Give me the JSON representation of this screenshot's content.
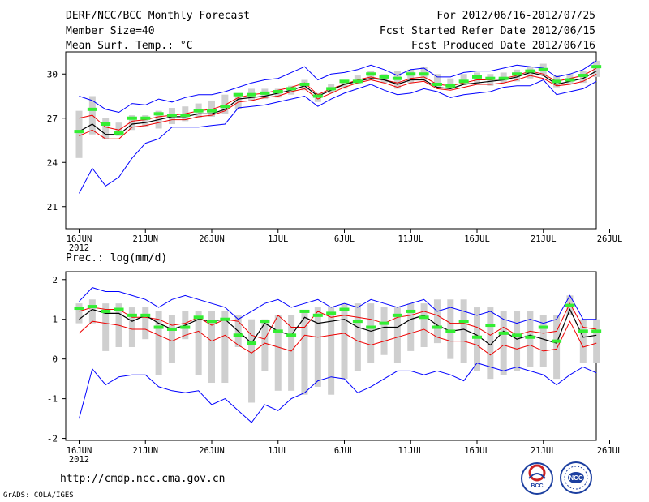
{
  "header": {
    "title": "DERF/NCC/BCC Monthly Forecast",
    "member_size": "Member Size=40",
    "variable": "Mean Surf. Temp.: °C",
    "period": "For 2012/06/16-2012/07/25",
    "start_date": "Fcst Started Refer Date 2012/06/15",
    "produced_date": "Fcst Produced Date 2012/06/16"
  },
  "footer": {
    "url": "http://cmdp.ncc.cma.gov.cn",
    "grads": "GrADS: COLA/IGES",
    "logo_bcc": "BCC",
    "logo_ncc": "NCC"
  },
  "colors": {
    "green": "#33ee33",
    "gray": "#cfcfcf",
    "blue": "#0000ff",
    "red": "#ee0000",
    "black": "#000000"
  },
  "chart_data": [
    {
      "type": "line",
      "title": "Mean Surf. Temp.: °C",
      "x_ticks": [
        "16JUN",
        "21JUN",
        "26JUN",
        "1JUL",
        "6JUL",
        "11JUL",
        "16JUL",
        "21JUL",
        "26JUL"
      ],
      "x_tick_year": "2012",
      "ylim": [
        19.5,
        31.5
      ],
      "y_ticks": [
        21,
        24,
        27,
        30
      ],
      "x": [
        0,
        1,
        2,
        3,
        4,
        5,
        6,
        7,
        8,
        9,
        10,
        11,
        12,
        13,
        14,
        15,
        16,
        17,
        18,
        19,
        20,
        21,
        22,
        23,
        24,
        25,
        26,
        27,
        28,
        29,
        30,
        31,
        32,
        33,
        34,
        35,
        36,
        37,
        38,
        39
      ],
      "series": [
        {
          "name": "box_low",
          "values": [
            24.3,
            25.9,
            25.6,
            25.8,
            26.2,
            26.4,
            26.3,
            26.6,
            26.8,
            27.0,
            27.1,
            27.3,
            27.6,
            28.2,
            28.3,
            28.4,
            28.6,
            28.9,
            28.1,
            28.7,
            29.0,
            29.3,
            29.6,
            29.4,
            29.0,
            29.4,
            29.6,
            29.1,
            29.0,
            29.3,
            29.3,
            29.2,
            29.4,
            29.5,
            29.7,
            29.9,
            29.1,
            29.3,
            29.4,
            29.8
          ]
        },
        {
          "name": "box_high",
          "values": [
            27.5,
            28.5,
            27.0,
            26.7,
            27.2,
            27.2,
            27.5,
            27.7,
            27.8,
            28.0,
            28.2,
            28.6,
            28.7,
            29.0,
            29.0,
            29.0,
            29.2,
            29.6,
            28.7,
            29.3,
            29.6,
            29.9,
            30.2,
            30.0,
            30.2,
            30.3,
            30.5,
            30.0,
            29.7,
            30.0,
            30.1,
            30.0,
            30.1,
            30.3,
            30.5,
            30.7,
            29.9,
            30.0,
            30.2,
            30.9
          ]
        },
        {
          "name": "max",
          "values": [
            28.5,
            28.2,
            27.6,
            27.4,
            28.0,
            27.9,
            28.3,
            28.1,
            28.4,
            28.6,
            28.6,
            28.8,
            29.1,
            29.4,
            29.6,
            29.7,
            30.1,
            30.5,
            29.6,
            30.0,
            30.1,
            30.3,
            30.6,
            30.3,
            29.9,
            30.3,
            30.4,
            29.8,
            29.8,
            30.1,
            30.2,
            30.2,
            30.4,
            30.6,
            30.5,
            30.4,
            29.8,
            30.0,
            30.3,
            30.9
          ]
        },
        {
          "name": "min",
          "values": [
            21.9,
            23.6,
            22.4,
            23.0,
            24.3,
            25.3,
            25.6,
            26.4,
            26.4,
            26.4,
            26.5,
            26.6,
            27.7,
            27.8,
            27.9,
            28.1,
            28.3,
            28.5,
            27.8,
            28.3,
            28.7,
            29.0,
            29.3,
            28.9,
            28.6,
            28.7,
            29.0,
            28.8,
            28.4,
            28.6,
            28.7,
            28.8,
            29.1,
            29.2,
            29.2,
            29.6,
            28.6,
            28.8,
            29.0,
            29.5
          ]
        },
        {
          "name": "upper_red",
          "values": [
            27.0,
            27.2,
            26.4,
            26.2,
            26.8,
            26.9,
            27.1,
            27.2,
            27.3,
            27.5,
            27.6,
            27.9,
            28.4,
            28.6,
            28.7,
            28.9,
            29.1,
            29.4,
            28.6,
            29.0,
            29.3,
            29.6,
            29.8,
            29.6,
            29.4,
            29.7,
            29.8,
            29.3,
            29.2,
            29.4,
            29.6,
            29.6,
            29.7,
            29.9,
            30.2,
            30.0,
            29.5,
            29.7,
            29.9,
            30.4
          ]
        },
        {
          "name": "mean",
          "values": [
            26.1,
            26.6,
            25.9,
            25.9,
            26.6,
            26.7,
            26.9,
            27.1,
            27.1,
            27.3,
            27.3,
            27.6,
            28.3,
            28.4,
            28.5,
            28.7,
            28.9,
            29.2,
            28.5,
            28.9,
            29.3,
            29.5,
            29.7,
            29.6,
            29.3,
            29.6,
            29.6,
            29.1,
            29.0,
            29.3,
            29.4,
            29.5,
            29.6,
            29.8,
            30.1,
            29.9,
            29.3,
            29.5,
            29.7,
            30.2
          ]
        },
        {
          "name": "lower_red",
          "values": [
            25.8,
            26.2,
            25.6,
            25.6,
            26.4,
            26.5,
            26.7,
            26.9,
            26.9,
            27.1,
            27.2,
            27.5,
            28.1,
            28.2,
            28.4,
            28.5,
            28.8,
            29.0,
            28.3,
            28.7,
            29.1,
            29.4,
            29.6,
            29.4,
            29.1,
            29.4,
            29.5,
            29.0,
            28.9,
            29.1,
            29.3,
            29.3,
            29.4,
            29.6,
            29.9,
            29.7,
            29.2,
            29.3,
            29.5,
            30.0
          ]
        },
        {
          "name": "obs_green",
          "values": [
            26.1,
            27.6,
            26.6,
            26.0,
            27.0,
            27.0,
            27.3,
            27.2,
            27.2,
            27.5,
            27.5,
            27.8,
            28.6,
            28.6,
            28.7,
            28.8,
            29.0,
            29.3,
            28.5,
            29.0,
            29.5,
            29.5,
            30.0,
            29.8,
            29.7,
            30.0,
            30.0,
            29.3,
            29.2,
            29.5,
            29.8,
            29.7,
            29.7,
            30.0,
            30.2,
            30.3,
            29.5,
            29.6,
            29.9,
            30.5
          ]
        }
      ]
    },
    {
      "type": "line",
      "title": "Prec.: log(mm/d)",
      "x_ticks": [
        "16JUN",
        "21JUN",
        "26JUN",
        "1JUL",
        "6JUL",
        "11JUL",
        "16JUL",
        "21JUL",
        "26JUL"
      ],
      "x_tick_year": "2012",
      "ylim": [
        -2.05,
        2.2
      ],
      "y_ticks": [
        -2,
        -1,
        0,
        1,
        2
      ],
      "x": [
        0,
        1,
        2,
        3,
        4,
        5,
        6,
        7,
        8,
        9,
        10,
        11,
        12,
        13,
        14,
        15,
        16,
        17,
        18,
        19,
        20,
        21,
        22,
        23,
        24,
        25,
        26,
        27,
        28,
        29,
        30,
        31,
        32,
        33,
        34,
        35,
        36,
        37,
        38,
        39
      ],
      "series": [
        {
          "name": "box_low",
          "values": [
            0.9,
            0.9,
            0.2,
            0.3,
            0.3,
            0.5,
            -0.4,
            -0.1,
            0.5,
            -0.4,
            -0.6,
            -0.6,
            0.3,
            -1.1,
            -0.3,
            -0.8,
            -0.8,
            -0.9,
            -0.7,
            -0.9,
            -0.5,
            -0.3,
            -0.1,
            0.1,
            -0.1,
            0.2,
            0.3,
            0.4,
            0.0,
            -0.1,
            -0.3,
            -0.5,
            -0.4,
            -0.3,
            -0.2,
            -0.2,
            -0.5,
            1.1,
            -0.1,
            -0.1
          ]
        },
        {
          "name": "box_high",
          "values": [
            1.4,
            1.5,
            1.4,
            1.4,
            1.3,
            1.3,
            1.2,
            1.1,
            1.2,
            1.2,
            1.2,
            1.2,
            1.1,
            1.0,
            1.0,
            1.1,
            1.1,
            1.2,
            1.3,
            1.3,
            1.4,
            1.4,
            1.4,
            1.3,
            1.3,
            1.4,
            1.4,
            1.5,
            1.5,
            1.5,
            1.3,
            1.3,
            1.2,
            1.2,
            1.2,
            1.1,
            1.1,
            1.6,
            1.0,
            1.0
          ]
        },
        {
          "name": "max",
          "values": [
            1.45,
            1.8,
            1.7,
            1.7,
            1.6,
            1.5,
            1.3,
            1.5,
            1.6,
            1.5,
            1.4,
            1.3,
            1.0,
            1.2,
            1.4,
            1.5,
            1.3,
            1.4,
            1.5,
            1.3,
            1.4,
            1.3,
            1.5,
            1.4,
            1.3,
            1.4,
            1.5,
            1.2,
            1.3,
            1.2,
            1.1,
            1.2,
            1.0,
            0.9,
            1.0,
            0.9,
            1.0,
            1.6,
            1.0,
            1.0
          ]
        },
        {
          "name": "min",
          "values": [
            -1.5,
            -0.25,
            -0.65,
            -0.45,
            -0.4,
            -0.4,
            -0.7,
            -0.8,
            -0.85,
            -0.8,
            -1.15,
            -1.0,
            -1.3,
            -1.6,
            -1.15,
            -1.3,
            -1.0,
            -0.85,
            -0.55,
            -0.45,
            -0.5,
            -0.85,
            -0.7,
            -0.5,
            -0.3,
            -0.3,
            -0.4,
            -0.3,
            -0.4,
            -0.55,
            -0.1,
            -0.2,
            -0.3,
            -0.2,
            -0.3,
            -0.4,
            -0.65,
            -0.4,
            -0.2,
            -0.35
          ]
        },
        {
          "name": "upper_red",
          "values": [
            1.2,
            1.3,
            1.25,
            1.25,
            1.05,
            1.05,
            1.0,
            0.85,
            0.9,
            1.05,
            0.85,
            1.0,
            0.95,
            0.6,
            0.5,
            1.1,
            0.8,
            0.8,
            1.2,
            1.05,
            1.1,
            1.05,
            1.0,
            0.9,
            1.05,
            1.1,
            1.2,
            1.1,
            0.9,
            0.9,
            0.8,
            0.6,
            0.8,
            0.6,
            0.7,
            0.65,
            0.7,
            1.4,
            0.8,
            0.75
          ]
        },
        {
          "name": "mean",
          "values": [
            1.0,
            1.25,
            1.15,
            1.15,
            0.95,
            1.1,
            0.9,
            0.75,
            0.85,
            1.0,
            0.95,
            1.0,
            0.7,
            0.4,
            0.9,
            0.7,
            0.6,
            1.05,
            0.9,
            0.95,
            1.0,
            0.8,
            0.7,
            0.8,
            0.8,
            1.0,
            1.1,
            0.85,
            0.7,
            0.75,
            0.6,
            0.35,
            0.7,
            0.5,
            0.6,
            0.5,
            0.4,
            1.25,
            0.55,
            0.6
          ]
        },
        {
          "name": "lower_red",
          "values": [
            0.65,
            0.95,
            0.9,
            0.85,
            0.75,
            0.75,
            0.6,
            0.45,
            0.6,
            0.7,
            0.45,
            0.6,
            0.35,
            0.15,
            0.4,
            0.3,
            0.2,
            0.6,
            0.55,
            0.6,
            0.65,
            0.45,
            0.35,
            0.45,
            0.55,
            0.65,
            0.75,
            0.55,
            0.45,
            0.45,
            0.35,
            0.1,
            0.35,
            0.25,
            0.35,
            0.2,
            0.25,
            0.95,
            0.3,
            0.4
          ]
        },
        {
          "name": "obs_green",
          "values": [
            1.28,
            1.32,
            1.2,
            1.25,
            1.1,
            1.1,
            0.8,
            0.75,
            0.8,
            1.05,
            0.95,
            1.0,
            0.6,
            0.4,
            0.95,
            0.7,
            0.6,
            1.2,
            1.1,
            1.15,
            1.25,
            0.95,
            0.8,
            0.9,
            1.1,
            1.2,
            1.05,
            0.8,
            0.7,
            0.95,
            0.55,
            0.85,
            0.65,
            0.6,
            0.55,
            0.8,
            0.45,
            1.35,
            0.7,
            0.7
          ]
        }
      ]
    }
  ]
}
